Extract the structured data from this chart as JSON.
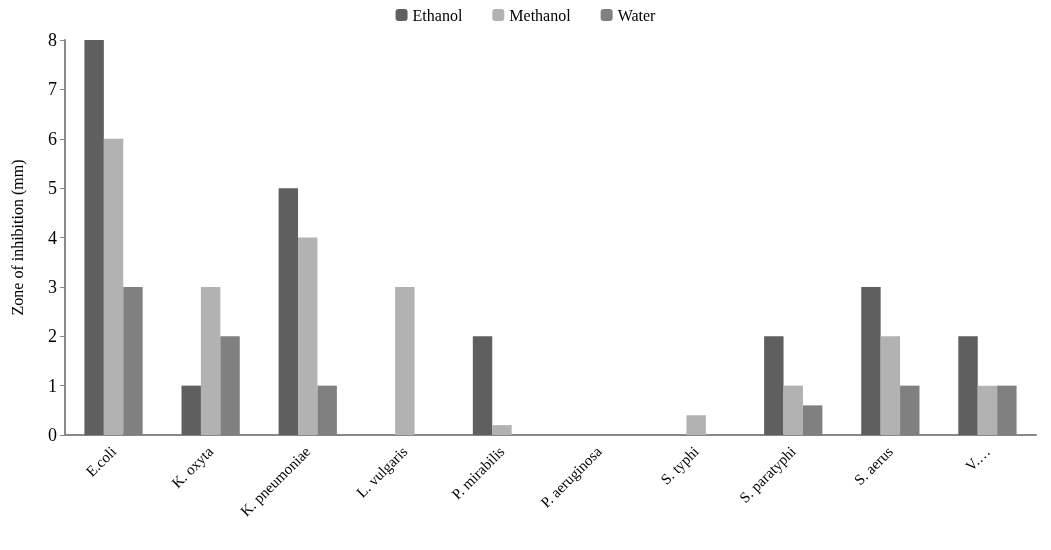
{
  "chart_data": {
    "type": "bar",
    "ylabel": "Zone of inhibition (mm)",
    "categories": [
      "E.coli",
      "K. oxyta",
      "K. pneumoniae",
      "L. vulgaris",
      "P. mirabilis",
      "P. aeruginosa",
      "S. typhi",
      "S. paratyphi",
      "S. aerus",
      "V.…"
    ],
    "series": [
      {
        "name": "Ethanol",
        "color": "#5f5f5f",
        "values": [
          8,
          1,
          5,
          0,
          2,
          0,
          0,
          2,
          3,
          2
        ]
      },
      {
        "name": "Methanol",
        "color": "#b2b2b2",
        "values": [
          6,
          3,
          4,
          3,
          0.2,
          0,
          0.4,
          1,
          2,
          1
        ]
      },
      {
        "name": "Water",
        "color": "#808080",
        "values": [
          3,
          2,
          1,
          0,
          0,
          0,
          0,
          0.6,
          1,
          1
        ]
      }
    ],
    "ylim": [
      0,
      8
    ],
    "yticks": [
      0,
      1,
      2,
      3,
      4,
      5,
      6,
      7,
      8
    ],
    "grid": false,
    "legend": "top"
  }
}
